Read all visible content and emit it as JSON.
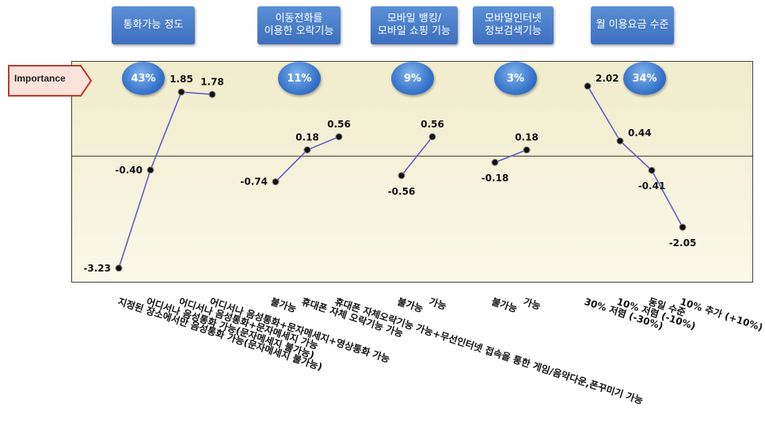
{
  "attributes": [
    {
      "name": "통화가능 정도",
      "importance": "43%"
    },
    {
      "name": "이동전화를\n이용한 오락기능",
      "importance": "11%"
    },
    {
      "name": "모바일 뱅킹/\n모바일 쇼핑 기능",
      "importance": "9%"
    },
    {
      "name": "모바일인터넷\n정보검색기능",
      "importance": "3%"
    },
    {
      "name": "월 이용요금 수준",
      "importance": "34%"
    }
  ],
  "importance_label": "Importance",
  "colors": {
    "line": "#6060c8",
    "marker": "#111111",
    "box": "#4a7cc9",
    "tag_border": "#c0392b"
  },
  "chart_data": {
    "type": "line",
    "series": [
      {
        "attribute": "통화가능 정도",
        "levels": [
          "지정된 장소에서만 음성통화 가능(문자메세지 불가능)",
          "어디서나 음성통화 가능(문자메세지 불가능)",
          "어디서나 음성통화+문자메세지 가능",
          "어디서나 음성통화+문자메세지+영상통화 가능"
        ],
        "values": [
          -3.23,
          -0.4,
          1.85,
          1.78
        ],
        "value_labels": [
          "-3.23",
          "-0.40",
          "1.85",
          "1.78"
        ]
      },
      {
        "attribute": "이동전화를 이용한 오락기능",
        "levels": [
          "불가능",
          "휴대폰 자체 오락기능 가능",
          "휴대폰 자체오락기능 가능+무선인터넷 접속을 통한 게임/음악다운,폰꾸미기 가능"
        ],
        "values": [
          -0.74,
          0.18,
          0.56
        ],
        "value_labels": [
          "-0.74",
          "0.18",
          "0.56"
        ]
      },
      {
        "attribute": "모바일 뱅킹/모바일 쇼핑 기능",
        "levels": [
          "불가능",
          "가능"
        ],
        "values": [
          -0.56,
          0.56
        ],
        "value_labels": [
          "-0.56",
          "0.56"
        ]
      },
      {
        "attribute": "모바일인터넷 정보검색기능",
        "levels": [
          "불가능",
          "가능"
        ],
        "values": [
          -0.18,
          0.18
        ],
        "value_labels": [
          "-0.18",
          "0.18"
        ]
      },
      {
        "attribute": "월 이용요금 수준",
        "levels": [
          "30% 저렴 (-30%)",
          "10% 저렴 (-10%)",
          "동일 수준",
          "10% 추가 (+10%)"
        ],
        "values": [
          2.02,
          0.44,
          -0.41,
          -2.05
        ],
        "value_labels": [
          "2.02",
          "0.44",
          "-0.41",
          "-2.05"
        ]
      }
    ],
    "ylim": [
      -3.6,
      2.7
    ],
    "zero_line": true,
    "grid": false
  }
}
